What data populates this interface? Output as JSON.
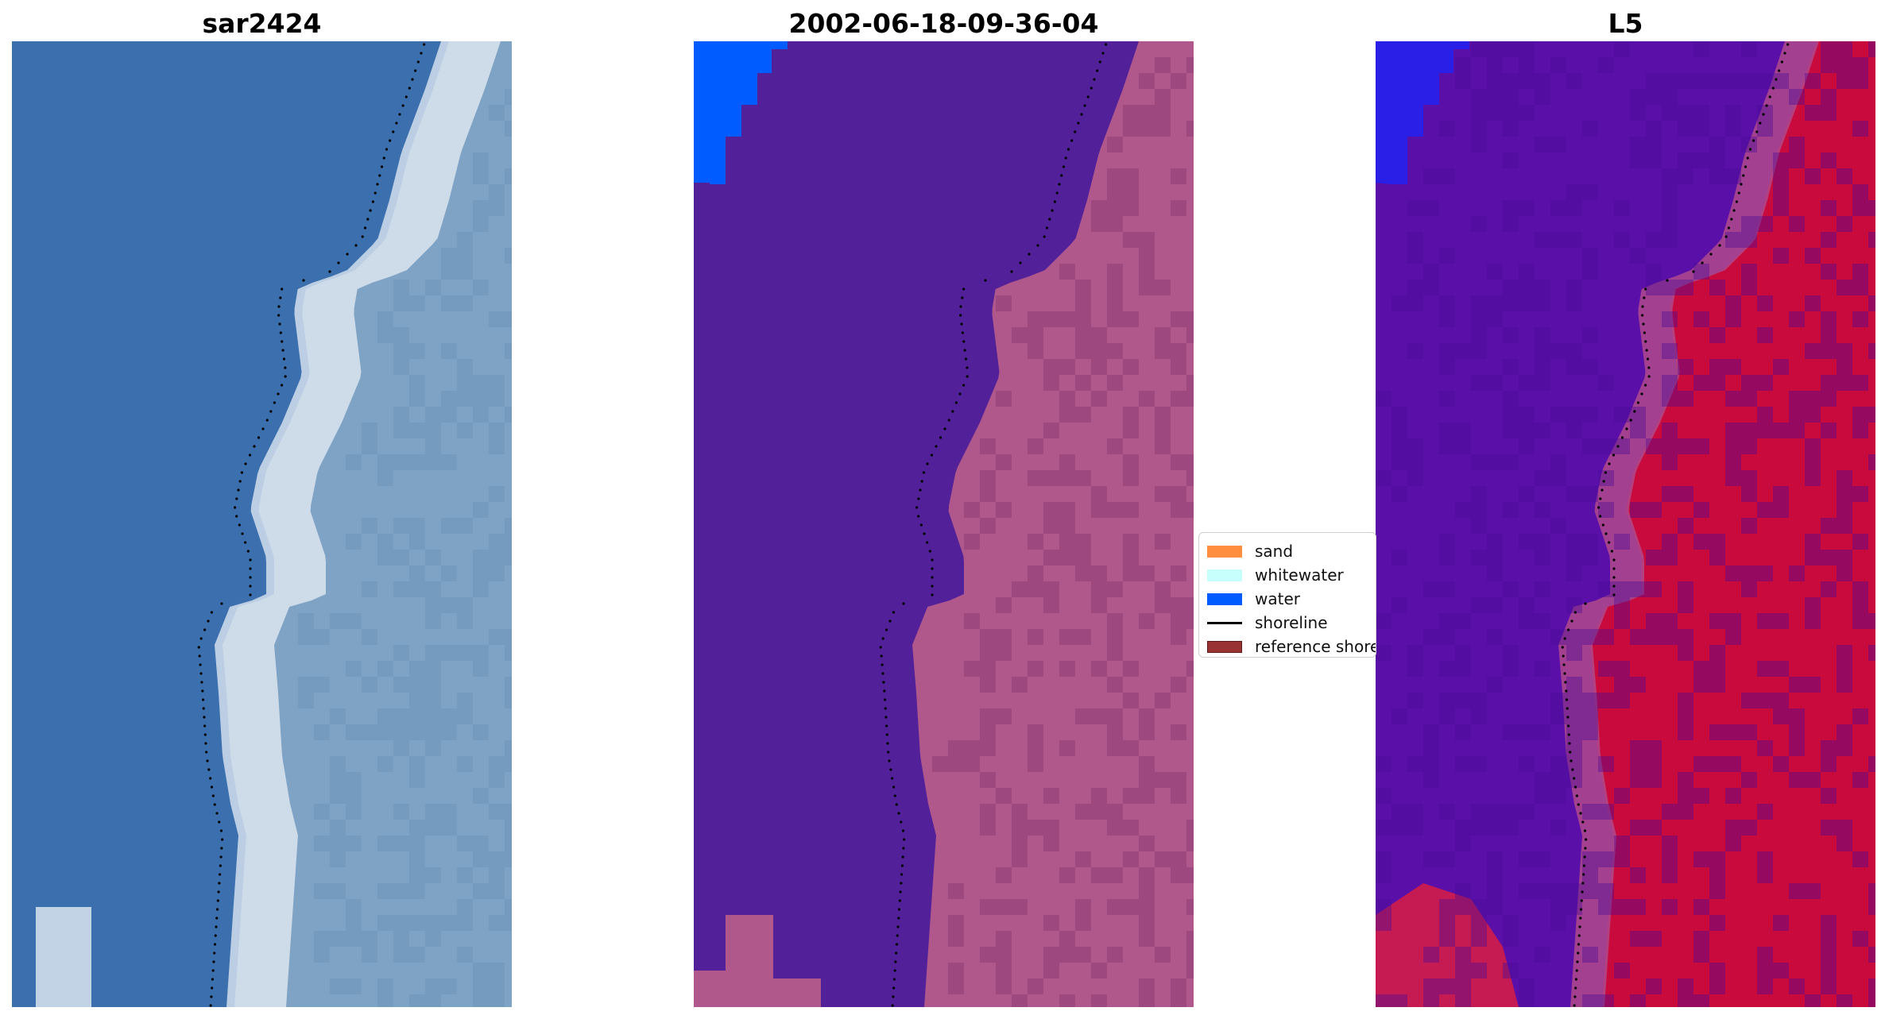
{
  "panels": [
    {
      "title": "sar2424",
      "kind": "rgb-image"
    },
    {
      "title": "2002-06-18-09-36-04",
      "kind": "classification"
    },
    {
      "title": "L5",
      "kind": "mndwi"
    }
  ],
  "legend": {
    "items": [
      {
        "label": "sand",
        "type": "patch",
        "color": "#ff8f3f"
      },
      {
        "label": "whitewater",
        "type": "patch",
        "color": "#c6fffb"
      },
      {
        "label": "water",
        "type": "patch",
        "color": "#005cff"
      },
      {
        "label": "shoreline",
        "type": "line",
        "color": "#000000"
      },
      {
        "label": "reference shoreline",
        "type": "patch",
        "color": "#993333"
      }
    ]
  },
  "colors": {
    "sea_rgb": "#3b6fae",
    "surf_rgb": "#e8eef5",
    "land_rgb": "#7fa3c4",
    "water_class": "#52219a",
    "land_overlay": "#b0578c",
    "water_mask": "#005cff",
    "mndwi_low": "#5a0fa8",
    "mndwi_high": "#c80a3c"
  }
}
